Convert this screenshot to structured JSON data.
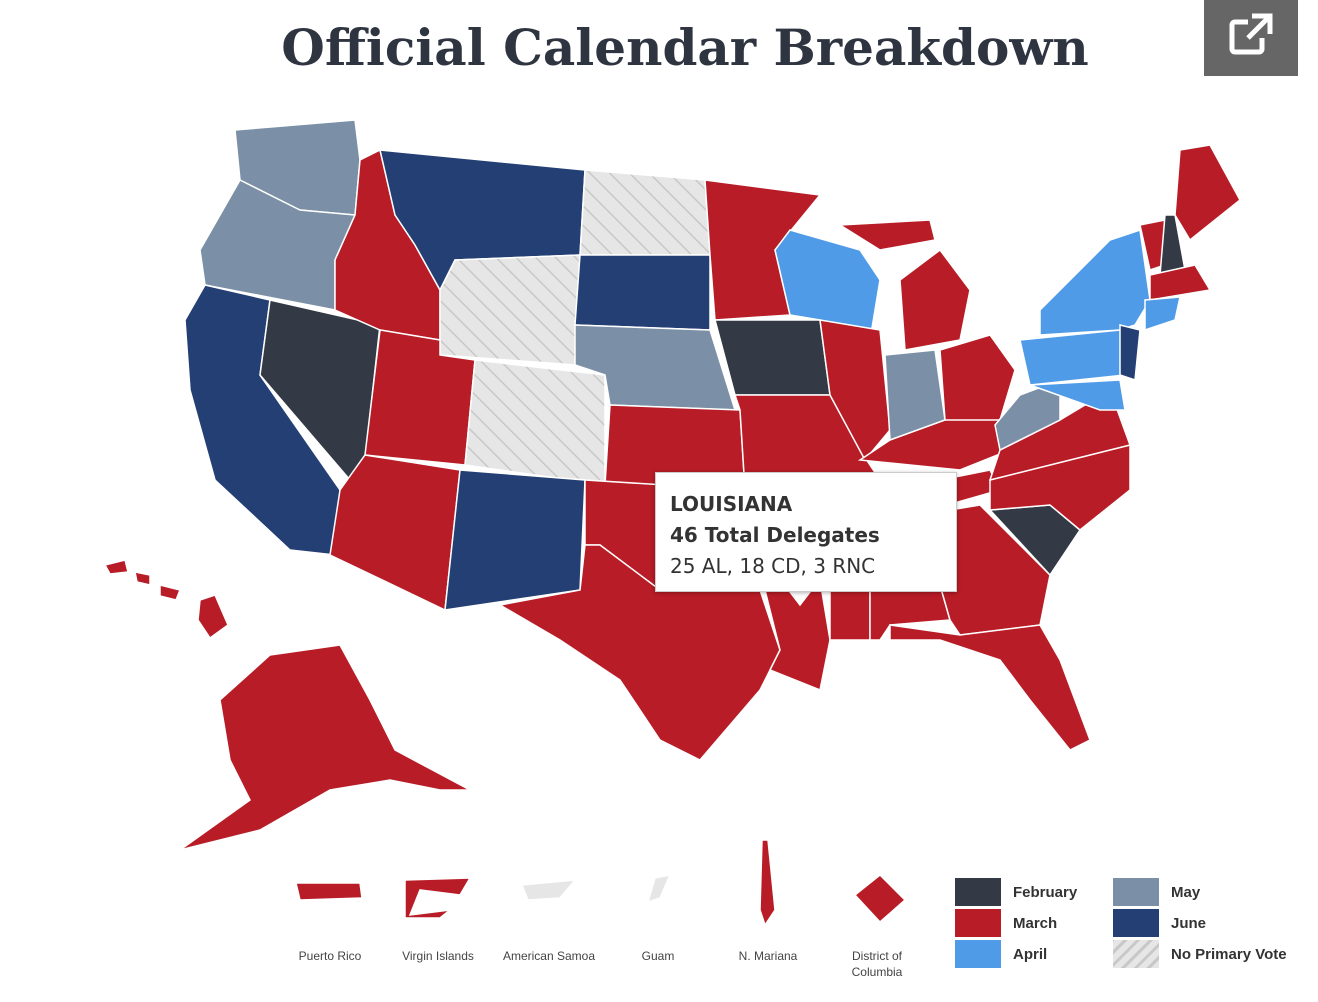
{
  "header": {
    "title": "Official Calendar Breakdown"
  },
  "tooltip": {
    "state": "LOUISIANA",
    "total": "46 Total Delegates",
    "breakdown": "25 AL, 18 CD, 3 RNC"
  },
  "territories": [
    "Puerto Rico",
    "Virgin Islands",
    "American Samoa",
    "Guam",
    "N. Mariana",
    "District of Columbia"
  ],
  "legend": [
    {
      "label": "February",
      "color": "#343a45"
    },
    {
      "label": "March",
      "color": "#b81c26"
    },
    {
      "label": "April",
      "color": "#4f9be8"
    },
    {
      "label": "May",
      "color": "#7b8fa6"
    },
    {
      "label": "June",
      "color": "#243f74"
    },
    {
      "label": "No Primary Vote",
      "color": "hatch"
    }
  ]
}
